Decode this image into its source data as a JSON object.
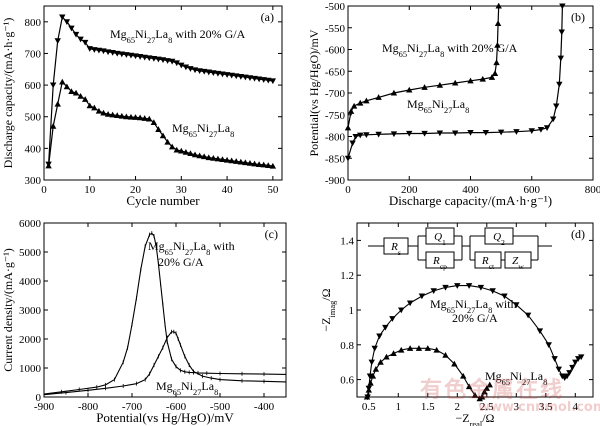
{
  "chart_data": [
    {
      "panel": "(a)",
      "type": "line",
      "xlabel": "Cycle number",
      "ylabel": "Discharge capacity/(mA·h·g⁻¹)",
      "xlim": [
        0,
        52
      ],
      "ylim": [
        300,
        850
      ],
      "xticks": [
        0,
        10,
        20,
        30,
        40,
        50
      ],
      "yticks": [
        300,
        400,
        500,
        600,
        700,
        800
      ],
      "grid": false,
      "series": [
        {
          "name": "Mg65Ni27La8 with 20% G/A",
          "label_parts": [
            [
              "Mg",
              ""
            ],
            [
              "65",
              "sub"
            ],
            [
              "Ni",
              ""
            ],
            [
              "27",
              "sub"
            ],
            [
              "La",
              ""
            ],
            [
              "8",
              "sub"
            ],
            [
              " with 20% G/A",
              ""
            ]
          ],
          "marker": "down-triangle",
          "x": [
            1,
            2,
            3,
            4,
            5,
            6,
            7,
            8,
            9,
            10,
            11,
            12,
            13,
            14,
            15,
            16,
            17,
            18,
            19,
            20,
            21,
            22,
            23,
            24,
            25,
            26,
            27,
            28,
            29,
            30,
            31,
            32,
            33,
            34,
            35,
            36,
            37,
            38,
            39,
            40,
            41,
            42,
            43,
            44,
            45,
            46,
            47,
            48,
            49,
            50
          ],
          "values": [
            350,
            600,
            740,
            815,
            800,
            780,
            760,
            745,
            735,
            715,
            712,
            710,
            708,
            705,
            703,
            700,
            698,
            696,
            694,
            692,
            690,
            688,
            686,
            684,
            682,
            680,
            677,
            675,
            670,
            663,
            657,
            652,
            648,
            645,
            643,
            641,
            639,
            637,
            635,
            633,
            631,
            629,
            627,
            625,
            623,
            621,
            619,
            617,
            615,
            613
          ]
        },
        {
          "name": "Mg65Ni27La8",
          "label_parts": [
            [
              "Mg",
              ""
            ],
            [
              "65",
              "sub"
            ],
            [
              "Ni",
              ""
            ],
            [
              "27",
              "sub"
            ],
            [
              "La",
              ""
            ],
            [
              "8",
              "sub"
            ]
          ],
          "marker": "up-triangle",
          "x": [
            1,
            2,
            3,
            4,
            5,
            6,
            7,
            8,
            9,
            10,
            11,
            12,
            13,
            14,
            15,
            16,
            17,
            18,
            19,
            20,
            21,
            22,
            23,
            24,
            25,
            26,
            27,
            28,
            29,
            30,
            31,
            32,
            33,
            34,
            35,
            36,
            37,
            38,
            39,
            40,
            41,
            42,
            43,
            44,
            45,
            46,
            47,
            48,
            49,
            50
          ],
          "values": [
            345,
            470,
            540,
            610,
            595,
            580,
            575,
            565,
            555,
            535,
            528,
            518,
            512,
            508,
            506,
            504,
            502,
            500,
            499,
            498,
            497,
            495,
            493,
            482,
            460,
            440,
            420,
            405,
            395,
            392,
            388,
            384,
            380,
            377,
            374,
            371,
            369,
            367,
            365,
            363,
            361,
            359,
            357,
            355,
            353,
            351,
            349,
            348,
            346,
            344
          ]
        }
      ]
    },
    {
      "panel": "(b)",
      "type": "line",
      "xlabel": "Discharge capacity/(mA·h·g⁻¹)",
      "ylabel": "Potential(vs Hg/HgO)/mV",
      "xlim": [
        0,
        800
      ],
      "ylim": [
        -900,
        -500
      ],
      "xticks": [
        0,
        200,
        400,
        600,
        800
      ],
      "yticks": [
        -900,
        -850,
        -800,
        -750,
        -700,
        -650,
        -600,
        -550,
        -500
      ],
      "grid": false,
      "series": [
        {
          "name": "Mg65Ni27La8 with 20% G/A",
          "label_parts": [
            [
              "Mg",
              ""
            ],
            [
              "65",
              "sub"
            ],
            [
              "Ni",
              ""
            ],
            [
              "27",
              "sub"
            ],
            [
              "La",
              ""
            ],
            [
              "8",
              "sub"
            ],
            [
              " with 20% G/A",
              ""
            ]
          ],
          "marker": "down-triangle",
          "x": [
            0,
            15,
            25,
            40,
            60,
            100,
            150,
            200,
            250,
            300,
            350,
            400,
            450,
            500,
            550,
            600,
            630,
            650,
            670,
            680,
            690,
            695,
            698,
            700
          ],
          "values": [
            -850,
            -815,
            -800,
            -797,
            -796,
            -795,
            -794,
            -793,
            -793,
            -792,
            -792,
            -791,
            -791,
            -790,
            -789,
            -787,
            -784,
            -780,
            -760,
            -730,
            -680,
            -620,
            -560,
            -500
          ]
        },
        {
          "name": "Mg65Ni27La8",
          "label_parts": [
            [
              "Mg",
              ""
            ],
            [
              "65",
              "sub"
            ],
            [
              "Ni",
              ""
            ],
            [
              "27",
              "sub"
            ],
            [
              "La",
              ""
            ],
            [
              "8",
              "sub"
            ]
          ],
          "marker": "up-triangle",
          "x": [
            0,
            10,
            20,
            40,
            60,
            100,
            150,
            200,
            250,
            300,
            350,
            400,
            440,
            470,
            480,
            485,
            488,
            490,
            492
          ],
          "values": [
            -780,
            -742,
            -730,
            -723,
            -718,
            -710,
            -700,
            -693,
            -687,
            -682,
            -677,
            -672,
            -668,
            -664,
            -655,
            -630,
            -590,
            -540,
            -500
          ]
        }
      ]
    },
    {
      "panel": "(c)",
      "type": "line",
      "xlabel": "Potential(vs Hg/HgO)/mV",
      "ylabel": "Current density/(mA·g⁻¹)",
      "xlim": [
        -900,
        -350
      ],
      "ylim": [
        0,
        6000
      ],
      "xticks": [
        -900,
        -800,
        -700,
        -600,
        -500,
        -400
      ],
      "yticks": [
        0,
        1000,
        2000,
        3000,
        4000,
        5000,
        6000
      ],
      "grid": false,
      "series": [
        {
          "name": "Mg65Ni27La8 with 20% G/A",
          "label_parts": [
            [
              "Mg",
              ""
            ],
            [
              "65",
              "sub"
            ],
            [
              "Ni",
              ""
            ],
            [
              "27",
              "sub"
            ],
            [
              "La",
              ""
            ],
            [
              "8",
              "sub"
            ],
            [
              " with",
              ""
            ]
          ],
          "label_line2": "20% G/A",
          "x": [
            -900,
            -860,
            -820,
            -780,
            -760,
            -740,
            -720,
            -710,
            -700,
            -690,
            -680,
            -670,
            -660,
            -655,
            -650,
            -645,
            -640,
            -635,
            -630,
            -625,
            -620,
            -610,
            -600,
            -590,
            -580,
            -570,
            -560,
            -550,
            -530,
            -500,
            -450,
            -400,
            -350
          ],
          "values": [
            100,
            180,
            260,
            340,
            420,
            600,
            1200,
            1700,
            2500,
            3400,
            4400,
            5200,
            5600,
            5650,
            5550,
            5200,
            4600,
            3900,
            3200,
            2500,
            1900,
            1300,
            1050,
            920,
            870,
            850,
            840,
            830,
            820,
            810,
            800,
            790,
            780
          ]
        },
        {
          "name": "Mg65Ni27La8",
          "label_parts": [
            [
              "Mg",
              ""
            ],
            [
              "65",
              "sub"
            ],
            [
              "Ni",
              ""
            ],
            [
              "27",
              "sub"
            ],
            [
              "La",
              ""
            ],
            [
              "8",
              "sub"
            ]
          ],
          "x": [
            -900,
            -850,
            -800,
            -760,
            -720,
            -690,
            -670,
            -660,
            -650,
            -640,
            -630,
            -620,
            -610,
            -605,
            -600,
            -595,
            -590,
            -580,
            -570,
            -560,
            -540,
            -520,
            -500,
            -450,
            -400,
            -350
          ],
          "values": [
            80,
            150,
            230,
            300,
            380,
            460,
            600,
            800,
            1100,
            1400,
            1700,
            2050,
            2250,
            2250,
            2200,
            2000,
            1800,
            1400,
            1100,
            880,
            720,
            650,
            600,
            560,
            540,
            520
          ]
        }
      ]
    },
    {
      "panel": "(d)",
      "type": "scatter",
      "xlabel_parts": [
        [
          "−Z",
          ""
        ],
        [
          "real",
          "sub"
        ],
        [
          "/Ω",
          ""
        ]
      ],
      "ylabel_parts": [
        [
          "−Z",
          ""
        ],
        [
          "imag",
          "sub"
        ],
        [
          "/Ω",
          ""
        ]
      ],
      "xlim": [
        0.3,
        4.3
      ],
      "ylim": [
        0.5,
        1.5
      ],
      "xticks": [
        0.5,
        1.0,
        1.5,
        2.0,
        2.5,
        3.0,
        3.5,
        4.0
      ],
      "yticks": [
        0.6,
        0.8,
        1.0,
        1.2,
        1.4
      ],
      "grid": false,
      "circuit": {
        "labels": [
          [
            [
              "R",
              "ital"
            ],
            [
              "s",
              "sub"
            ]
          ],
          [
            [
              "Q",
              "ital"
            ],
            [
              "1",
              "sub"
            ]
          ],
          [
            [
              "R",
              "ital"
            ],
            [
              "cp",
              "sub"
            ]
          ],
          [
            [
              "Q",
              "ital"
            ],
            [
              "2",
              "sub"
            ]
          ],
          [
            [
              "R",
              "ital"
            ],
            [
              "ct",
              "sub"
            ]
          ],
          [
            [
              "Z",
              "ital"
            ],
            [
              "w",
              "sub"
            ]
          ]
        ]
      },
      "series": [
        {
          "name": "Mg65Ni27La8 with 20% G/A",
          "label_parts": [
            [
              "Mg",
              ""
            ],
            [
              "65",
              "sub"
            ],
            [
              "Ni",
              ""
            ],
            [
              "27",
              "sub"
            ],
            [
              "La",
              ""
            ],
            [
              "8",
              "sub"
            ],
            [
              " with",
              ""
            ]
          ],
          "label_line2": "20% G/A",
          "marker": "down-triangle",
          "x": [
            0.48,
            0.5,
            0.52,
            0.55,
            0.6,
            0.68,
            0.78,
            0.9,
            1.05,
            1.2,
            1.4,
            1.6,
            1.8,
            2.0,
            2.2,
            2.4,
            2.6,
            2.8,
            3.0,
            3.2,
            3.4,
            3.55,
            3.65,
            3.72,
            3.78,
            3.82,
            3.86,
            3.9,
            3.95,
            4.0,
            4.05,
            4.1
          ],
          "values": [
            0.5,
            0.55,
            0.62,
            0.7,
            0.78,
            0.85,
            0.9,
            0.95,
            1.0,
            1.04,
            1.08,
            1.11,
            1.13,
            1.14,
            1.14,
            1.13,
            1.11,
            1.08,
            1.03,
            0.97,
            0.88,
            0.8,
            0.72,
            0.66,
            0.62,
            0.61,
            0.62,
            0.64,
            0.67,
            0.7,
            0.72,
            0.73
          ]
        },
        {
          "name": "Mg65Ni27La8",
          "label_parts": [
            [
              "Mg",
              ""
            ],
            [
              "65",
              "sub"
            ],
            [
              "Ni",
              ""
            ],
            [
              "27",
              "sub"
            ],
            [
              "La",
              ""
            ],
            [
              "8",
              "sub"
            ]
          ],
          "marker": "up-triangle",
          "x": [
            0.47,
            0.5,
            0.53,
            0.57,
            0.62,
            0.7,
            0.8,
            0.92,
            1.05,
            1.2,
            1.35,
            1.5,
            1.65,
            1.8,
            1.95,
            2.1,
            2.2,
            2.3,
            2.38,
            2.42,
            2.46,
            2.5,
            2.55
          ],
          "values": [
            0.5,
            0.54,
            0.58,
            0.62,
            0.66,
            0.7,
            0.73,
            0.75,
            0.77,
            0.78,
            0.78,
            0.78,
            0.77,
            0.74,
            0.69,
            0.62,
            0.56,
            0.51,
            0.49,
            0.5,
            0.53,
            0.55,
            0.57
          ]
        }
      ]
    }
  ],
  "watermark": {
    "line1": "有色金属在线",
    "line2": "www.cnnmol.com"
  }
}
